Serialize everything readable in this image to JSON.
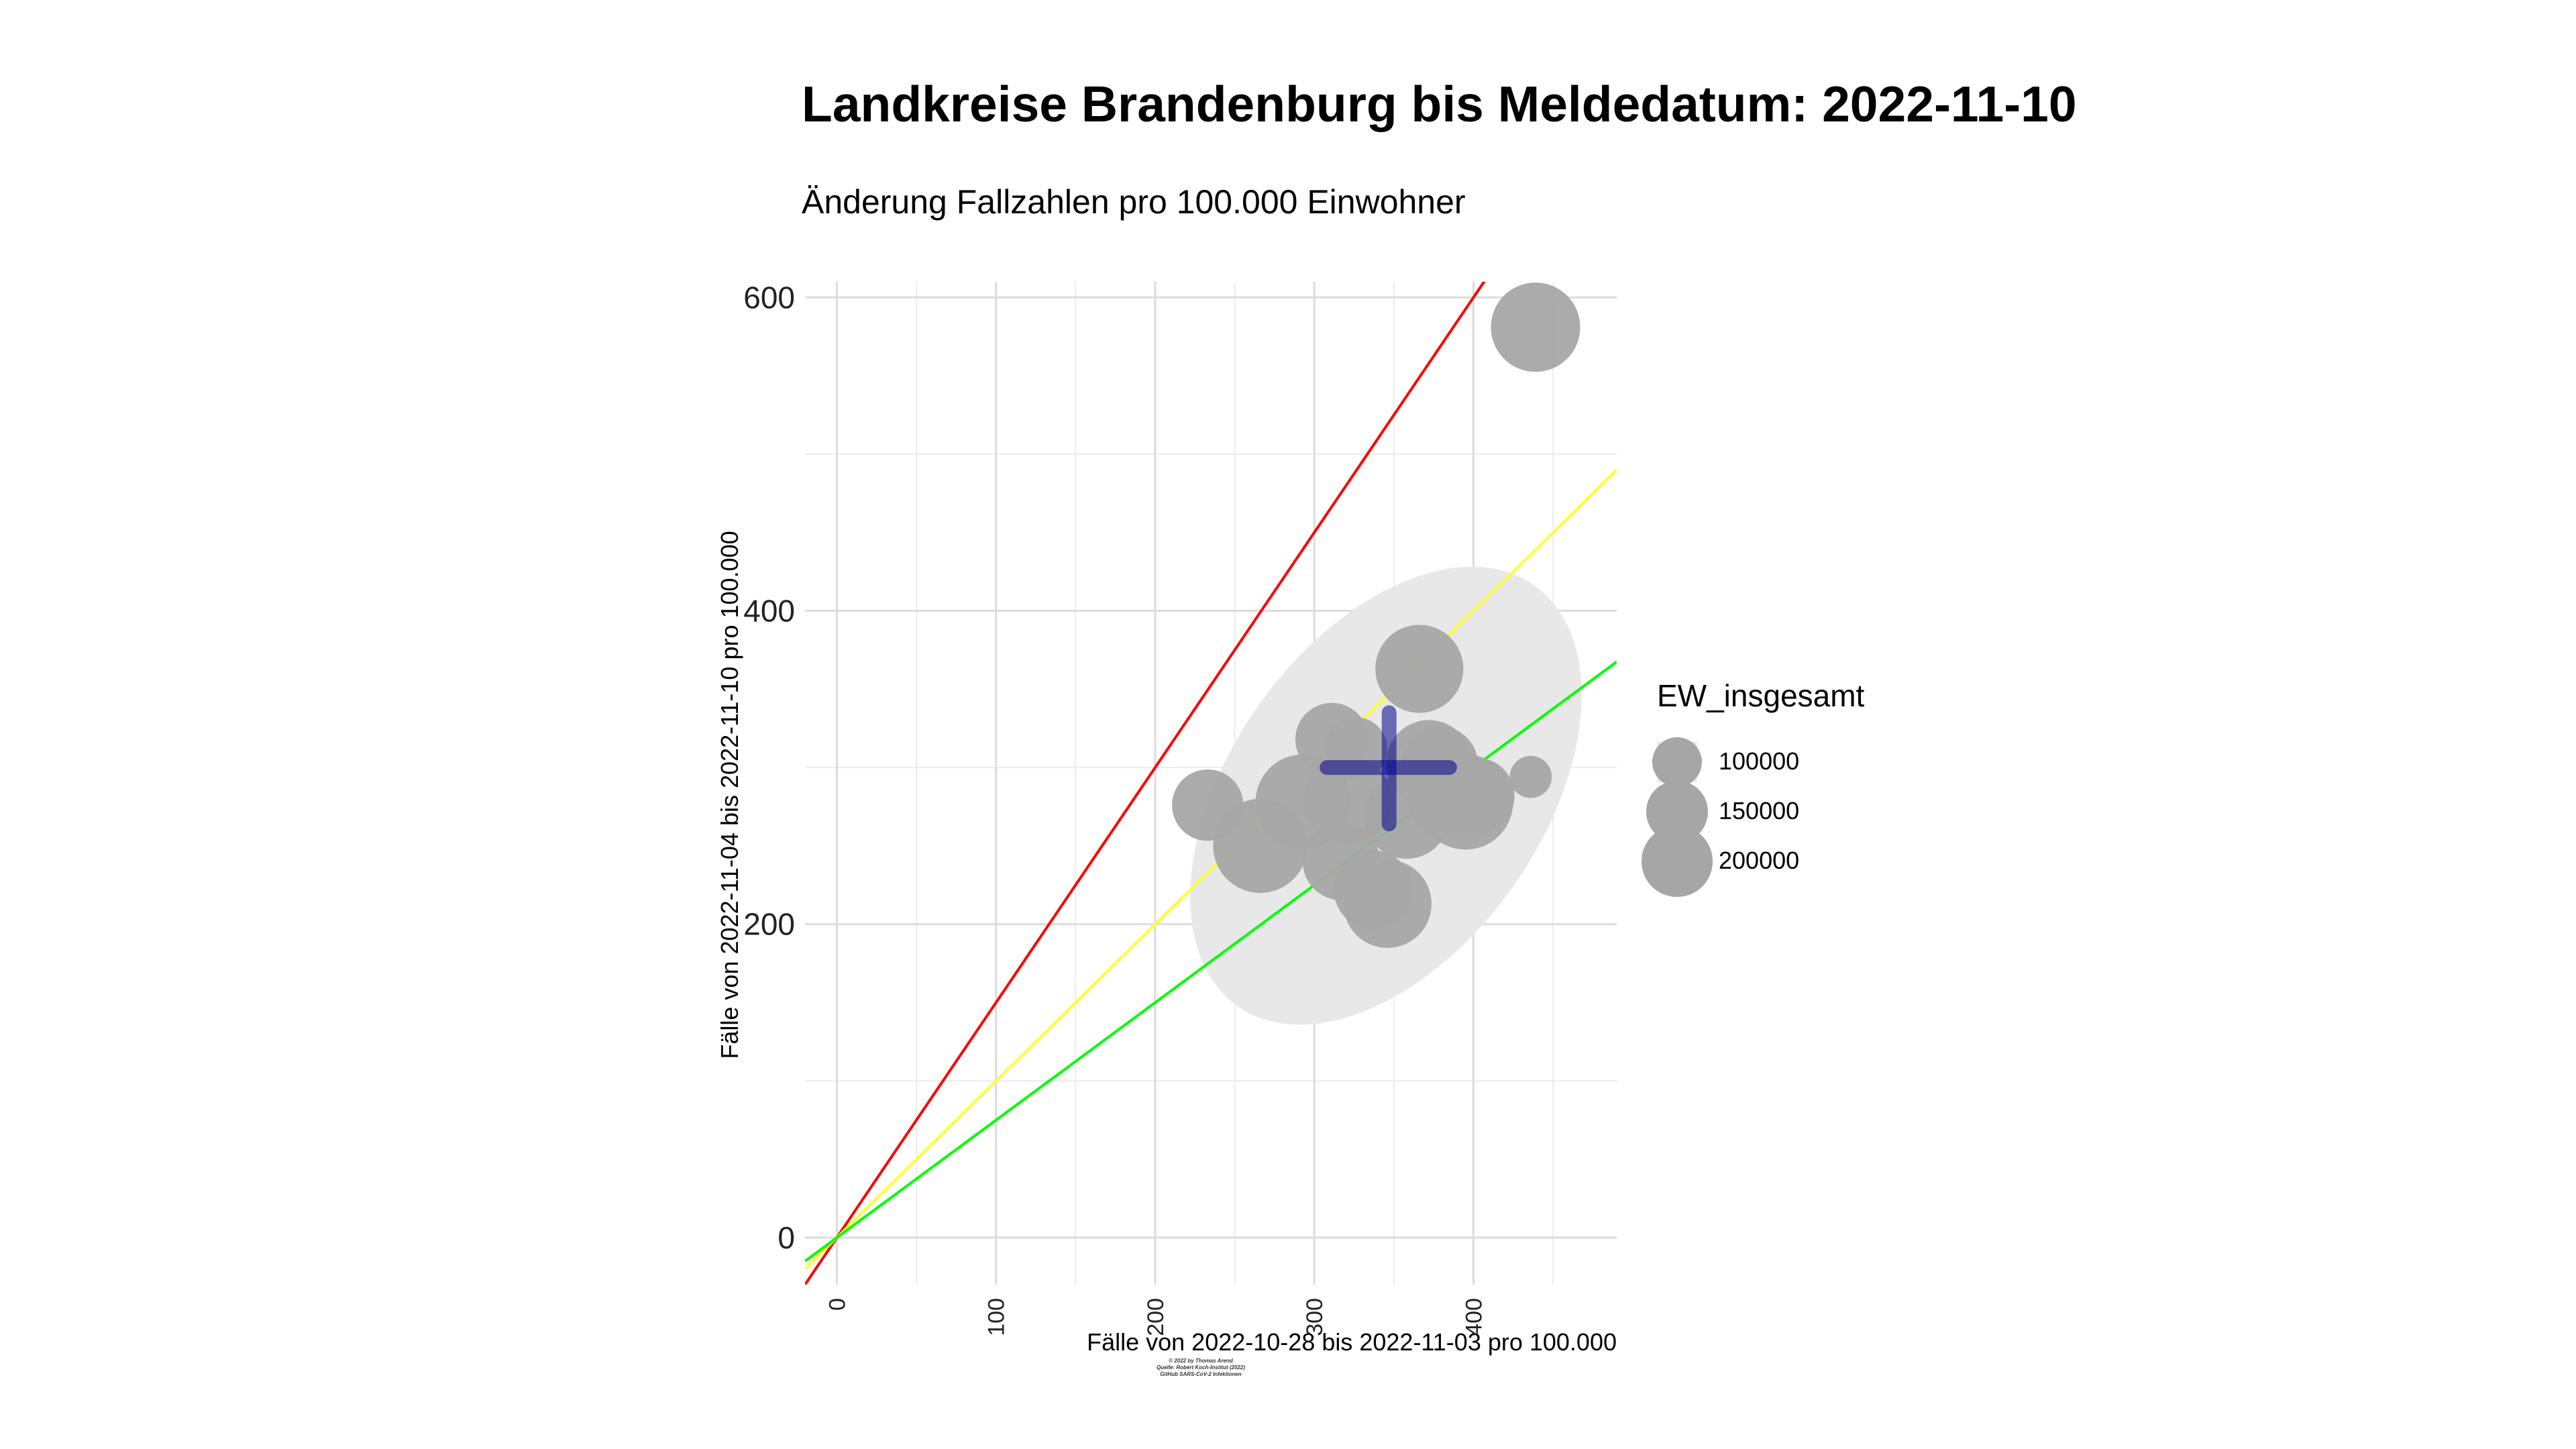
{
  "chart_data": {
    "type": "scatter",
    "title": "Landkreise Brandenburg bis Meldedatum: 2022-11-10",
    "subtitle": "Änderung Fallzahlen pro 100.000 Einwohner",
    "xlabel": "Fälle von 2022-10-28 bis 2022-11-03 pro 100.000",
    "ylabel": "Fälle von 2022-11-04 bis 2022-11-10 pro 100.000",
    "xlim": [
      -20,
      490
    ],
    "ylim": [
      -30,
      610
    ],
    "x_ticks": [
      0,
      100,
      200,
      300,
      400
    ],
    "y_ticks": [
      0,
      200,
      400,
      600
    ],
    "grid": true,
    "reference_lines": [
      {
        "slope": 1.5,
        "color": "#ff0000"
      },
      {
        "slope": 1.0,
        "color": "#ffff33"
      },
      {
        "slope": 0.75,
        "color": "#00ff00"
      }
    ],
    "ellipse": {
      "center_x": 345,
      "center_y": 282,
      "color": "#e8e8e8"
    },
    "center_cross": {
      "x": 347,
      "y": 300,
      "x_range": [
        308,
        385
      ],
      "y_range": [
        264,
        335
      ],
      "color": "#00008b"
    },
    "size_variable": "EW_insgesamt",
    "points": [
      {
        "x": 439,
        "y": 581,
        "ew": 180000
      },
      {
        "x": 366,
        "y": 363,
        "ew": 175000
      },
      {
        "x": 311,
        "y": 318,
        "ew": 120000
      },
      {
        "x": 326,
        "y": 312,
        "ew": 90000
      },
      {
        "x": 372,
        "y": 303,
        "ew": 165000
      },
      {
        "x": 379,
        "y": 302,
        "ew": 130000
      },
      {
        "x": 436,
        "y": 294,
        "ew": 40000
      },
      {
        "x": 233,
        "y": 276,
        "ew": 115000
      },
      {
        "x": 293,
        "y": 278,
        "ew": 205000
      },
      {
        "x": 321,
        "y": 279,
        "ew": 175000
      },
      {
        "x": 381,
        "y": 279,
        "ew": 110000
      },
      {
        "x": 395,
        "y": 278,
        "ew": 205000
      },
      {
        "x": 402,
        "y": 282,
        "ew": 130000
      },
      {
        "x": 358,
        "y": 269,
        "ew": 165000
      },
      {
        "x": 266,
        "y": 250,
        "ew": 200000
      },
      {
        "x": 317,
        "y": 240,
        "ew": 135000
      },
      {
        "x": 337,
        "y": 222,
        "ew": 140000
      },
      {
        "x": 346,
        "y": 213,
        "ew": 175000
      }
    ],
    "legend": {
      "title": "EW_insgesamt",
      "position": "right",
      "entries": [
        {
          "label": "100000",
          "value": 100000
        },
        {
          "label": "150000",
          "value": 150000
        },
        {
          "label": "200000",
          "value": 200000
        }
      ]
    }
  },
  "credits": [
    "© 2022 by Thomas Arend",
    "Quelle: Robert Koch-Institut (2022)",
    "GitHub SARS-CoV-2 Infektionen"
  ]
}
